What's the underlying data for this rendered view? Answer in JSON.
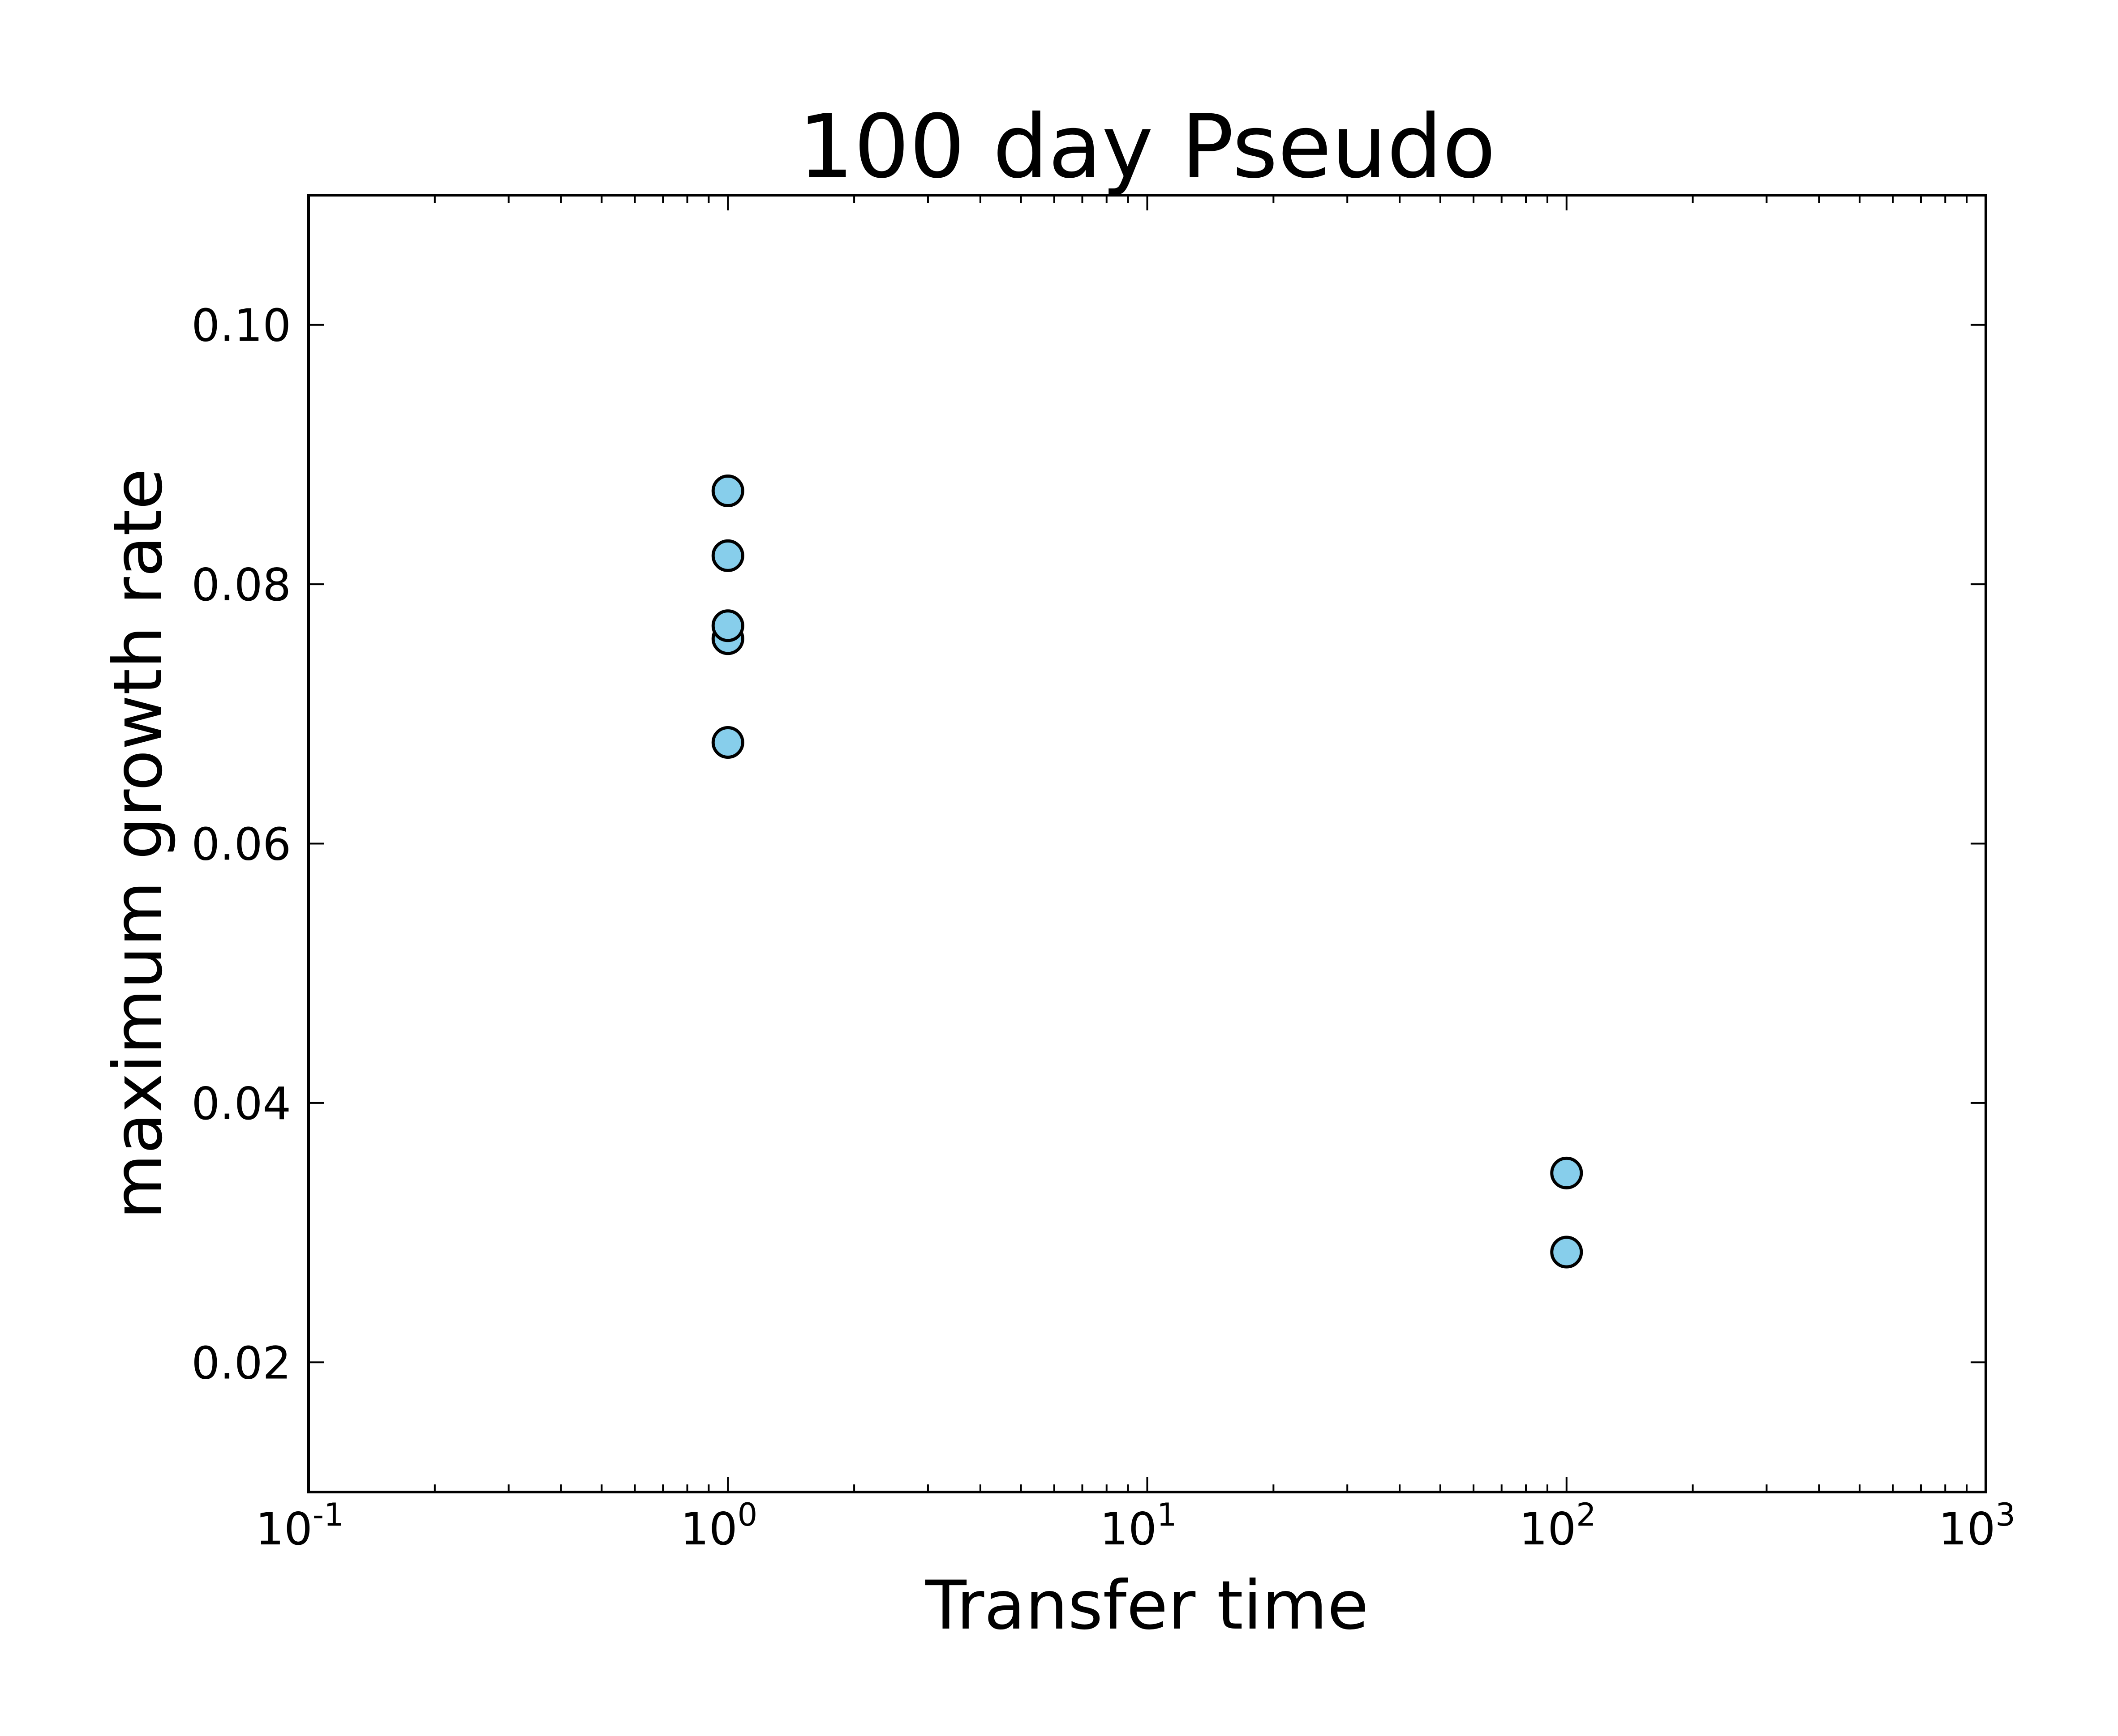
{
  "chart_data": {
    "type": "scatter",
    "title": "100 day Pseudo",
    "xlabel": "Transfer time",
    "ylabel": "maximum growth rate",
    "xscale": "log",
    "xlim": [
      0.1,
      1000
    ],
    "ylim": [
      0.01,
      0.11
    ],
    "grid": false,
    "x_tick_labels": [
      {
        "value": 0.1,
        "base": "10",
        "exp": "-1"
      },
      {
        "value": 1,
        "base": "10",
        "exp": "0"
      },
      {
        "value": 10,
        "base": "10",
        "exp": "1"
      },
      {
        "value": 100,
        "base": "10",
        "exp": "2"
      },
      {
        "value": 1000,
        "base": "10",
        "exp": "3"
      }
    ],
    "y_ticks": [
      0.02,
      0.04,
      0.06,
      0.08,
      0.1
    ],
    "y_tick_labels": [
      "0.02",
      "0.04",
      "0.06",
      "0.08",
      "0.10"
    ],
    "series": [
      {
        "color": "#87ceeb",
        "edge_color": "#000000",
        "points": [
          {
            "x": 1,
            "y": 0.0872
          },
          {
            "x": 1,
            "y": 0.0822
          },
          {
            "x": 1,
            "y": 0.0758
          },
          {
            "x": 1,
            "y": 0.0768
          },
          {
            "x": 1,
            "y": 0.0678
          },
          {
            "x": 100,
            "y": 0.0346
          },
          {
            "x": 100,
            "y": 0.0285
          }
        ]
      }
    ]
  }
}
